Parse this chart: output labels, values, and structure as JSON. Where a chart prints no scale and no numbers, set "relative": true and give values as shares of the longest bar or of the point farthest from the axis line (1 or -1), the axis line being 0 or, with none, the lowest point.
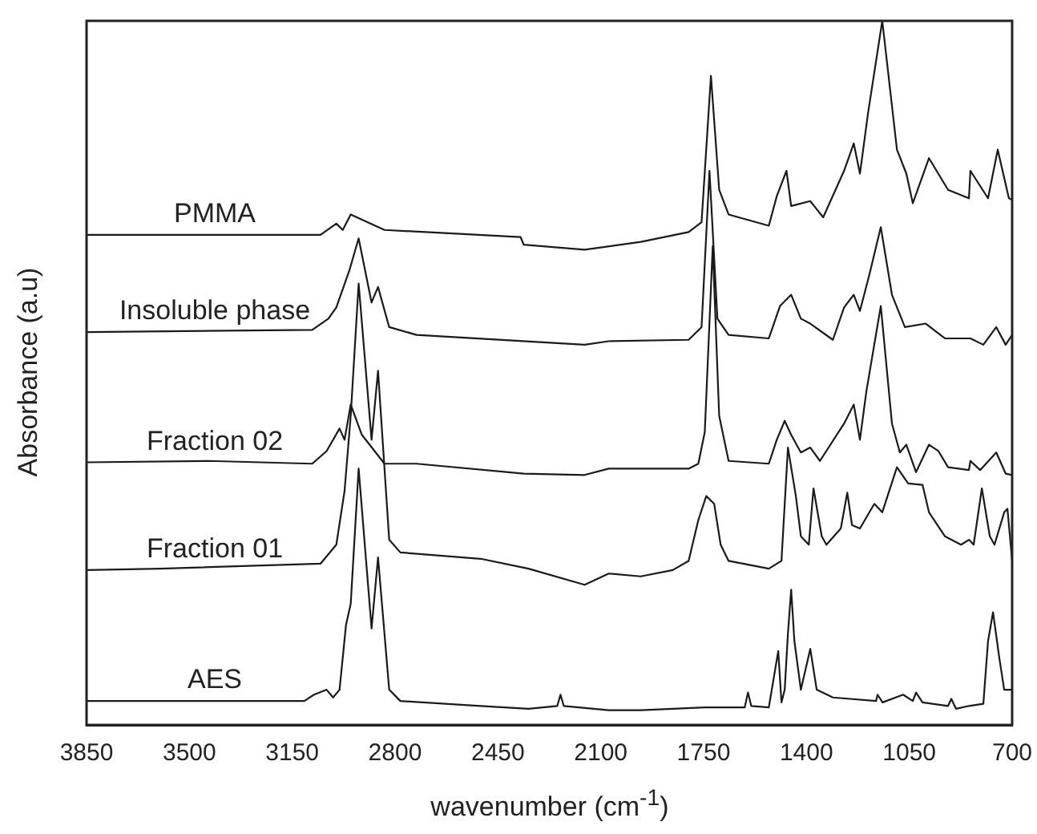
{
  "chart_data": {
    "type": "line",
    "xlabel": "wavenumber (cm$^{-1}$)",
    "ylabel": "Absorbance (a.u)",
    "relative": true,
    "legend": false,
    "grid": false,
    "marker": "none",
    "line_style": "solid",
    "xlim": [
      3850,
      700
    ],
    "xticks": [
      3850,
      3500,
      3150,
      2800,
      2450,
      2100,
      1750,
      1400,
      1050,
      700
    ],
    "series": [
      {
        "name": "PMMA",
        "color": "#1a1a1a",
        "x": [
          3850,
          3054,
          3000,
          2978,
          2951,
          2836,
          2373,
          2362,
          2155,
          1964,
          1801,
          1757,
          1725,
          1697,
          1665,
          1528,
          1501,
          1468,
          1452,
          1387,
          1343,
          1272,
          1239,
          1218,
          1190,
          1142,
          1092,
          1060,
          1038,
          983,
          918,
          847,
          842,
          782,
          749,
          711,
          700
        ],
        "values": [
          0.696,
          0.696,
          0.712,
          0.703,
          0.725,
          0.703,
          0.693,
          0.682,
          0.675,
          0.686,
          0.7,
          0.714,
          0.922,
          0.76,
          0.725,
          0.709,
          0.751,
          0.787,
          0.737,
          0.744,
          0.721,
          0.787,
          0.826,
          0.783,
          0.87,
          1,
          0.817,
          0.783,
          0.741,
          0.805,
          0.76,
          0.748,
          0.787,
          0.748,
          0.817,
          0.748,
          0.746
        ]
      },
      {
        "name": "Insoluble phase",
        "color": "#1a1a1a",
        "x": [
          3850,
          3082,
          3027,
          3000,
          2956,
          2924,
          2880,
          2858,
          2820,
          2727,
          2155,
          2073,
          1801,
          1757,
          1730,
          1703,
          1665,
          1528,
          1490,
          1452,
          1419,
          1387,
          1310,
          1272,
          1239,
          1218,
          1185,
          1147,
          1109,
          1065,
          994,
          929,
          842,
          798,
          754,
          722,
          700
        ],
        "values": [
          0.558,
          0.561,
          0.577,
          0.593,
          0.645,
          0.691,
          0.6,
          0.622,
          0.565,
          0.554,
          0.54,
          0.545,
          0.547,
          0.565,
          0.787,
          0.577,
          0.554,
          0.549,
          0.595,
          0.611,
          0.577,
          0.57,
          0.547,
          0.593,
          0.611,
          0.588,
          0.641,
          0.707,
          0.611,
          0.565,
          0.57,
          0.549,
          0.549,
          0.54,
          0.565,
          0.54,
          0.554
        ]
      },
      {
        "name": "Fraction 02",
        "color": "#1a1a1a",
        "x": [
          3850,
          3436,
          3082,
          3033,
          2989,
          2972,
          2951,
          2913,
          2836,
          2727,
          2362,
          2155,
          2073,
          1801,
          1768,
          1746,
          1719,
          1697,
          1665,
          1528,
          1501,
          1474,
          1452,
          1419,
          1387,
          1354,
          1272,
          1239,
          1218,
          1196,
          1147,
          1109,
          1082,
          1060,
          1027,
          983,
          951,
          918,
          847,
          842,
          809,
          754,
          722,
          700
        ],
        "values": [
          0.373,
          0.375,
          0.371,
          0.389,
          0.421,
          0.405,
          0.455,
          0.412,
          0.371,
          0.371,
          0.357,
          0.355,
          0.364,
          0.364,
          0.371,
          0.416,
          0.68,
          0.439,
          0.375,
          0.371,
          0.405,
          0.432,
          0.412,
          0.387,
          0.394,
          0.375,
          0.428,
          0.455,
          0.405,
          0.474,
          0.595,
          0.428,
          0.387,
          0.398,
          0.359,
          0.398,
          0.389,
          0.366,
          0.362,
          0.375,
          0.362,
          0.387,
          0.357,
          0.355
        ]
      },
      {
        "name": "Fraction 01",
        "color": "#1a1a1a",
        "x": [
          3850,
          3599,
          3054,
          3000,
          2972,
          2951,
          2924,
          2880,
          2858,
          2820,
          2782,
          2509,
          2346,
          2155,
          2073,
          1964,
          1855,
          1801,
          1768,
          1741,
          1714,
          1692,
          1665,
          1528,
          1485,
          1463,
          1436,
          1419,
          1392,
          1376,
          1348,
          1332,
          1283,
          1261,
          1245,
          1218,
          1169,
          1142,
          1092,
          1054,
          1005,
          983,
          929,
          874,
          847,
          831,
          803,
          776,
          760,
          727,
          716,
          700
        ],
        "values": [
          0.22,
          0.222,
          0.229,
          0.256,
          0.332,
          0.439,
          0.627,
          0.405,
          0.503,
          0.263,
          0.245,
          0.236,
          0.222,
          0.199,
          0.215,
          0.211,
          0.22,
          0.233,
          0.291,
          0.325,
          0.314,
          0.256,
          0.233,
          0.222,
          0.233,
          0.394,
          0.325,
          0.268,
          0.256,
          0.336,
          0.268,
          0.256,
          0.279,
          0.33,
          0.284,
          0.279,
          0.314,
          0.302,
          0.366,
          0.343,
          0.341,
          0.302,
          0.268,
          0.256,
          0.263,
          0.256,
          0.336,
          0.268,
          0.256,
          0.302,
          0.307,
          0.233
        ]
      },
      {
        "name": "AES",
        "color": "#1a1a1a",
        "x": [
          3850,
          3109,
          3076,
          3033,
          3011,
          2989,
          2967,
          2951,
          2924,
          2880,
          2858,
          2820,
          2782,
          2509,
          2346,
          2248,
          2237,
          2226,
          2073,
          1964,
          1746,
          1610,
          1599,
          1588,
          1528,
          1496,
          1485,
          1474,
          1463,
          1452,
          1441,
          1419,
          1387,
          1365,
          1310,
          1163,
          1158,
          1141,
          1071,
          1038,
          1027,
          1005,
          918,
          907,
          891,
          847,
          798,
          782,
          765,
          744,
          727,
          700
        ],
        "values": [
          0.034,
          0.034,
          0.043,
          0.05,
          0.039,
          0.05,
          0.142,
          0.172,
          0.364,
          0.137,
          0.238,
          0.05,
          0.034,
          0.027,
          0.023,
          0.027,
          0.043,
          0.027,
          0.021,
          0.021,
          0.025,
          0.025,
          0.046,
          0.027,
          0.025,
          0.105,
          0.032,
          0.05,
          0.13,
          0.192,
          0.119,
          0.05,
          0.108,
          0.05,
          0.039,
          0.034,
          0.043,
          0.032,
          0.043,
          0.034,
          0.046,
          0.032,
          0.027,
          0.037,
          0.023,
          0.027,
          0.03,
          0.119,
          0.16,
          0.096,
          0.05,
          0.05
        ]
      }
    ]
  }
}
